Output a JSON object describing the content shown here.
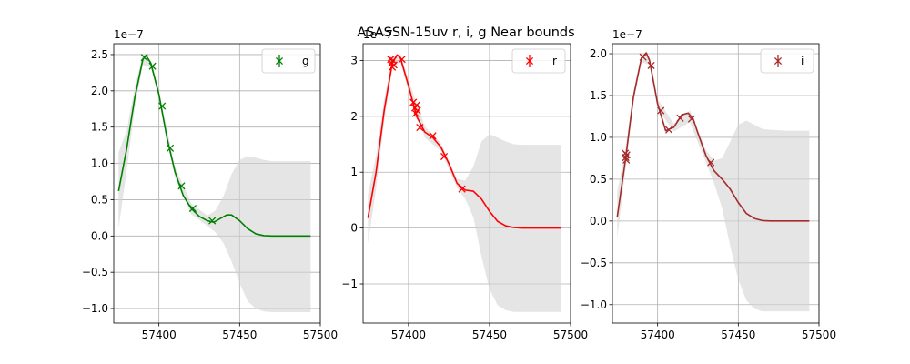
{
  "figure": {
    "title": "ASASSN-15uv  r, i, g Near bounds"
  },
  "chart_data": [
    {
      "type": "line",
      "name": "g",
      "color": "#008000",
      "band_color": "#d3d3d3",
      "xlim": [
        57372,
        57500
      ],
      "ylim": [
        -1.2,
        2.65
      ],
      "xticks": [
        57400,
        57450,
        57500
      ],
      "yticks": [
        -1.0,
        -0.5,
        0.0,
        0.5,
        1.0,
        1.5,
        2.0,
        2.5
      ],
      "ytick_labels": [
        "−1.0",
        "−0.5",
        "0.0",
        "0.5",
        "1.0",
        "1.5",
        "2.0",
        "2.5"
      ],
      "offset_label": "1e−7",
      "grid": true,
      "legend": {
        "label": "g",
        "position": "top-right"
      },
      "observations": [
        {
          "x": 57391,
          "y": 2.46
        },
        {
          "x": 57396,
          "y": 2.34
        },
        {
          "x": 57402,
          "y": 1.79
        },
        {
          "x": 57407,
          "y": 1.21
        },
        {
          "x": 57414,
          "y": 0.69
        },
        {
          "x": 57421,
          "y": 0.38
        },
        {
          "x": 57433,
          "y": 0.21
        }
      ],
      "fit": {
        "x": [
          57375,
          57380,
          57385,
          57390,
          57392,
          57395,
          57400,
          57405,
          57410,
          57415,
          57420,
          57425,
          57430,
          57434,
          57438,
          57442,
          57445,
          57450,
          57455,
          57460,
          57465,
          57470,
          57480,
          57494
        ],
        "y": [
          0.62,
          1.2,
          1.9,
          2.43,
          2.49,
          2.38,
          1.95,
          1.35,
          0.88,
          0.56,
          0.38,
          0.27,
          0.21,
          0.19,
          0.24,
          0.29,
          0.29,
          0.21,
          0.1,
          0.03,
          0.005,
          0.0,
          0.0,
          0.0
        ]
      },
      "band": {
        "x": [
          57375,
          57380,
          57385,
          57390,
          57395,
          57400,
          57410,
          57420,
          57430,
          57435,
          57440,
          57445,
          57450,
          57455,
          57460,
          57465,
          57470,
          57480,
          57494
        ],
        "upper": [
          1.15,
          1.45,
          2.05,
          2.5,
          2.42,
          2.0,
          0.95,
          0.45,
          0.28,
          0.35,
          0.55,
          0.85,
          1.05,
          1.1,
          1.08,
          1.05,
          1.03,
          1.03,
          1.03
        ],
        "lower": [
          0.1,
          0.9,
          1.75,
          2.36,
          2.32,
          1.9,
          0.8,
          0.3,
          0.14,
          0.05,
          -0.1,
          -0.35,
          -0.65,
          -0.9,
          -1.0,
          -1.04,
          -1.05,
          -1.05,
          -1.05
        ]
      }
    },
    {
      "type": "line",
      "name": "r",
      "color": "#ff0000",
      "band_color": "#d3d3d3",
      "xlim": [
        57372,
        57500
      ],
      "ylim": [
        -1.7,
        3.3
      ],
      "xticks": [
        57400,
        57450,
        57500
      ],
      "yticks": [
        -1,
        0,
        1,
        2,
        3
      ],
      "ytick_labels": [
        "−1",
        "0",
        "1",
        "2",
        "3"
      ],
      "offset_label": "1e−7",
      "grid": true,
      "legend": {
        "label": "r",
        "position": "top-right"
      },
      "observations": [
        {
          "x": 57389,
          "y": 3.02
        },
        {
          "x": 57389.5,
          "y": 2.95
        },
        {
          "x": 57390,
          "y": 2.88
        },
        {
          "x": 57390.5,
          "y": 3.0
        },
        {
          "x": 57391,
          "y": 2.92
        },
        {
          "x": 57396,
          "y": 3.02
        },
        {
          "x": 57403,
          "y": 2.25
        },
        {
          "x": 57404,
          "y": 2.15
        },
        {
          "x": 57404.5,
          "y": 2.05
        },
        {
          "x": 57405,
          "y": 2.2
        },
        {
          "x": 57405.5,
          "y": 2.1
        },
        {
          "x": 57407,
          "y": 1.8
        },
        {
          "x": 57415,
          "y": 1.65
        },
        {
          "x": 57422,
          "y": 1.28
        },
        {
          "x": 57433,
          "y": 0.7
        }
      ],
      "fit": {
        "x": [
          57375,
          57380,
          57385,
          57390,
          57393,
          57395,
          57400,
          57405,
          57410,
          57415,
          57420,
          57425,
          57430,
          57435,
          57440,
          57445,
          57450,
          57455,
          57460,
          57465,
          57470,
          57480,
          57494
        ],
        "y": [
          0.18,
          1.0,
          2.1,
          2.95,
          3.1,
          3.05,
          2.55,
          2.0,
          1.72,
          1.62,
          1.45,
          1.15,
          0.8,
          0.68,
          0.66,
          0.52,
          0.3,
          0.12,
          0.04,
          0.01,
          0.0,
          0.0,
          0.0
        ]
      },
      "band": {
        "x": [
          57375,
          57380,
          57385,
          57390,
          57395,
          57400,
          57410,
          57420,
          57430,
          57435,
          57440,
          57445,
          57450,
          57455,
          57460,
          57465,
          57470,
          57480,
          57494
        ],
        "upper": [
          0.6,
          1.3,
          2.3,
          3.05,
          3.12,
          2.65,
          1.82,
          1.52,
          0.88,
          0.85,
          1.1,
          1.55,
          1.68,
          1.62,
          1.55,
          1.5,
          1.49,
          1.49,
          1.49
        ],
        "lower": [
          -0.28,
          0.7,
          1.9,
          2.85,
          2.98,
          2.45,
          1.62,
          1.38,
          0.72,
          0.52,
          0.2,
          -0.5,
          -1.1,
          -1.38,
          -1.47,
          -1.5,
          -1.5,
          -1.5,
          -1.5
        ]
      }
    },
    {
      "type": "line",
      "name": "i",
      "color": "#a52a2a",
      "band_color": "#d3d3d3",
      "xlim": [
        57372,
        57500
      ],
      "ylim": [
        -1.22,
        2.12
      ],
      "xticks": [
        57400,
        57450,
        57500
      ],
      "yticks": [
        -1.0,
        -0.5,
        0.0,
        0.5,
        1.0,
        1.5,
        2.0
      ],
      "ytick_labels": [
        "−1.0",
        "−0.5",
        "0.0",
        "0.5",
        "1.0",
        "1.5",
        "2.0"
      ],
      "offset_label": "1e−7",
      "grid": true,
      "legend": {
        "label": "i",
        "position": "top-right"
      },
      "observations": [
        {
          "x": 57380,
          "y": 0.81
        },
        {
          "x": 57380.3,
          "y": 0.76
        },
        {
          "x": 57380.6,
          "y": 0.73
        },
        {
          "x": 57380.9,
          "y": 0.79
        },
        {
          "x": 57391,
          "y": 1.96
        },
        {
          "x": 57396,
          "y": 1.86
        },
        {
          "x": 57402,
          "y": 1.32
        },
        {
          "x": 57407,
          "y": 1.09
        },
        {
          "x": 57414,
          "y": 1.23
        },
        {
          "x": 57421,
          "y": 1.22
        },
        {
          "x": 57433,
          "y": 0.7
        }
      ],
      "fit": {
        "x": [
          57375,
          57380,
          57385,
          57390,
          57393,
          57395,
          57400,
          57405,
          57410,
          57415,
          57419,
          57422,
          57425,
          57430,
          57435,
          57440,
          57445,
          57450,
          57455,
          57460,
          57465,
          57470,
          57480,
          57494
        ],
        "y": [
          0.05,
          0.72,
          1.48,
          1.95,
          2.01,
          1.92,
          1.4,
          1.08,
          1.12,
          1.27,
          1.29,
          1.22,
          1.05,
          0.78,
          0.6,
          0.5,
          0.38,
          0.22,
          0.09,
          0.03,
          0.005,
          0.0,
          0.0,
          0.0
        ]
      },
      "band": {
        "x": [
          57375,
          57380,
          57385,
          57390,
          57395,
          57400,
          57410,
          57420,
          57430,
          57435,
          57440,
          57445,
          57450,
          57455,
          57460,
          57465,
          57470,
          57480,
          57494
        ],
        "upper": [
          0.35,
          0.85,
          1.55,
          1.99,
          1.96,
          1.46,
          1.16,
          1.32,
          0.85,
          0.72,
          0.75,
          0.95,
          1.15,
          1.2,
          1.15,
          1.1,
          1.09,
          1.08,
          1.08
        ],
        "lower": [
          -0.2,
          0.6,
          1.42,
          1.9,
          1.87,
          1.34,
          1.07,
          1.18,
          0.7,
          0.45,
          0.15,
          -0.3,
          -0.7,
          -0.95,
          -1.05,
          -1.08,
          -1.08,
          -1.08,
          -1.08
        ]
      }
    }
  ]
}
